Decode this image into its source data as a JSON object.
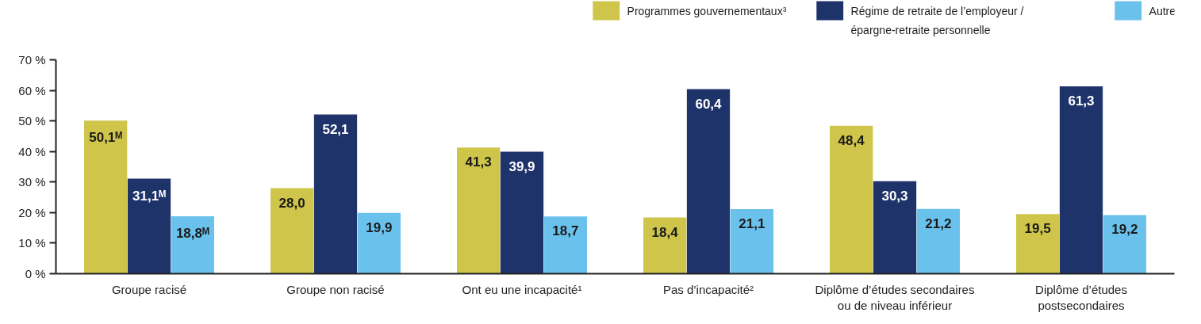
{
  "chart_data": {
    "type": "bar",
    "categories": [
      "Groupe racisé",
      "Groupe non racisé",
      "Ont eu une incapacité¹",
      "Pas d’incapacité²",
      "Diplôme d’études secondaires\nou de niveau inférieur",
      "Diplôme d’études\npostsecondaires"
    ],
    "series": [
      {
        "name": "Programmes gouvernementaux³",
        "color": "#cfc54a",
        "values": [
          50.1,
          28.0,
          41.3,
          18.4,
          48.4,
          19.5
        ],
        "value_labels": [
          "50,1ᴹ",
          "28,0",
          "41,3",
          "18,4",
          "48,4",
          "19,5"
        ]
      },
      {
        "name": "Régime de retraite de l’employeur /\népargne-retraite personnelle",
        "color": "#1f336b",
        "values": [
          31.1,
          52.1,
          39.9,
          60.4,
          30.3,
          61.3
        ],
        "value_labels": [
          "31,1ᴹ",
          "52,1",
          "39,9",
          "60,4",
          "30,3",
          "61,3"
        ]
      },
      {
        "name": "Autre",
        "color": "#69c1ec",
        "values": [
          18.8,
          19.9,
          18.7,
          21.1,
          21.2,
          19.2
        ],
        "value_labels": [
          "18,8ᴹ",
          "19,9",
          "18,7",
          "21,1",
          "21,2",
          "19,2"
        ]
      }
    ],
    "ylim": [
      0,
      70
    ],
    "yticks": [
      {
        "value": 0,
        "label": "0 %"
      },
      {
        "value": 10,
        "label": "10 %"
      },
      {
        "value": 20,
        "label": "20 %"
      },
      {
        "value": 30,
        "label": "30 %"
      },
      {
        "value": 40,
        "label": "40 %"
      },
      {
        "value": 50,
        "label": "50 %"
      },
      {
        "value": 60,
        "label": "60 %"
      },
      {
        "value": 70,
        "label": "70 %"
      }
    ],
    "grid": false,
    "legend": "top right"
  }
}
